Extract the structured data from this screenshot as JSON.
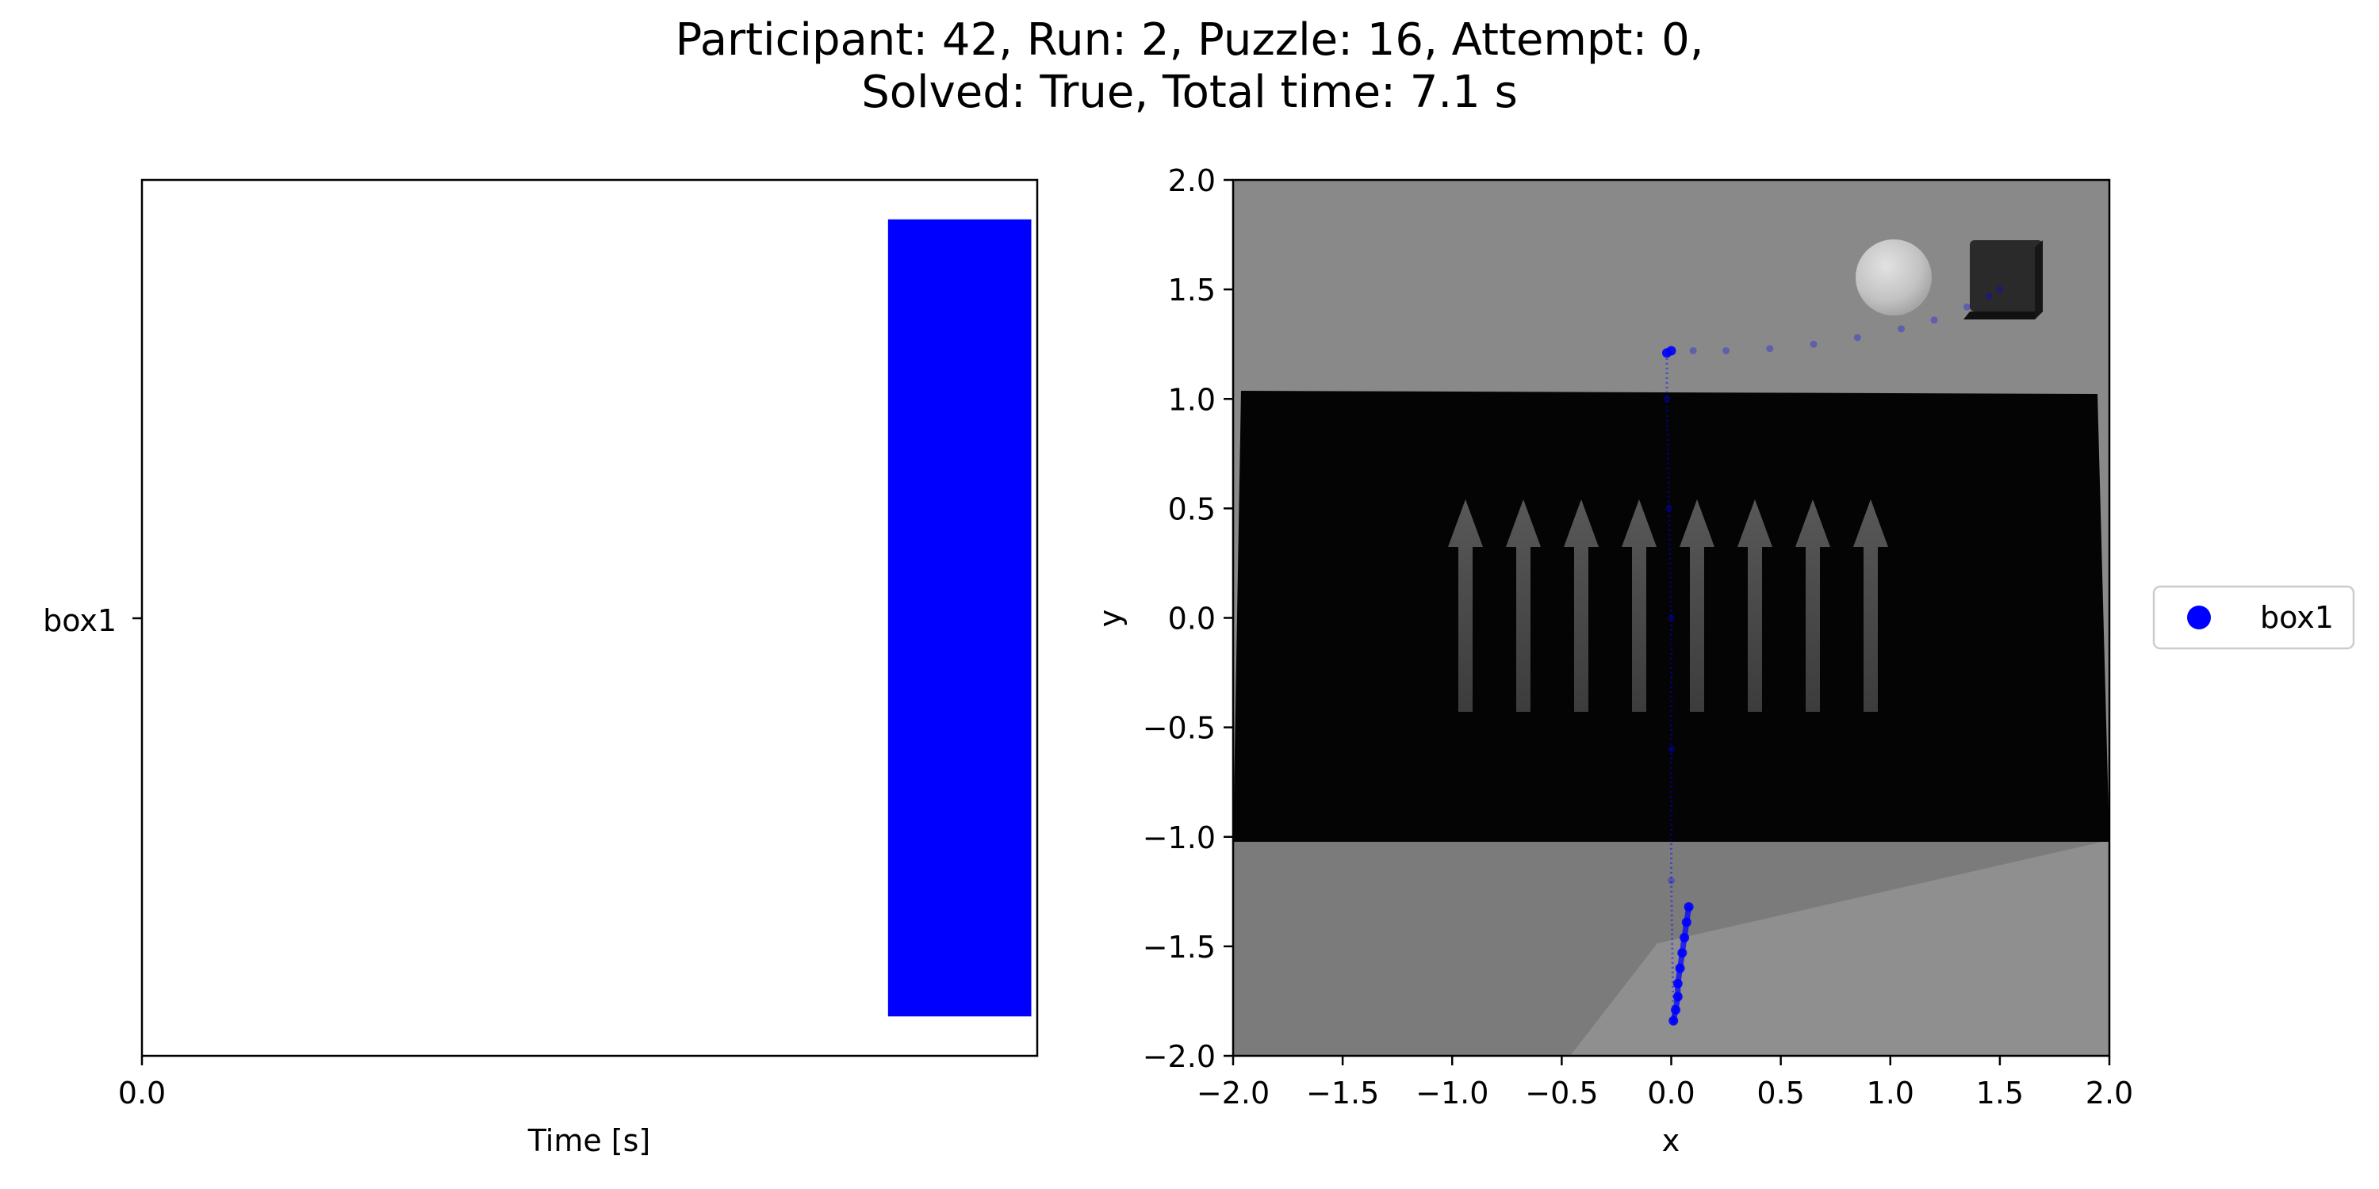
{
  "figure": {
    "title_line1": "Participant: 42, Run: 2, Puzzle: 16, Attempt: 0,",
    "title_line2": "Solved: True, Total time: 7.1 s"
  },
  "chart_data": [
    {
      "type": "bar",
      "orientation": "horizontal",
      "categories": [
        "box1"
      ],
      "series": [
        {
          "name": "box1",
          "start": 6.25,
          "end": 7.45,
          "color": "#0000ff"
        }
      ],
      "xlabel": "Time [s]",
      "ylabel": "",
      "xlim": [
        0,
        7.5
      ],
      "x_ticks": [
        "0.0"
      ],
      "grid": false
    },
    {
      "type": "scatter",
      "xlabel": "x",
      "ylabel": "y",
      "xlim": [
        -2.0,
        2.0
      ],
      "ylim": [
        -2.0,
        2.0
      ],
      "x_ticks": [
        "−2.0",
        "−1.5",
        "−1.0",
        "−0.5",
        "0.0",
        "0.5",
        "1.0",
        "1.5",
        "2.0"
      ],
      "y_ticks": [
        "−2.0",
        "−1.5",
        "−1.0",
        "−0.5",
        "0.0",
        "0.5",
        "1.0",
        "1.5",
        "2.0"
      ],
      "grid": false,
      "legend": {
        "position": "outside right",
        "entries": [
          "box1"
        ]
      },
      "background": "top-down scene image: grey floor, black belt with upward arrows, white sphere and black box near the top right",
      "series": [
        {
          "name": "box1",
          "color": "#0000ff",
          "points": [
            [
              0.08,
              -1.32
            ],
            [
              0.07,
              -1.39
            ],
            [
              0.06,
              -1.46
            ],
            [
              0.05,
              -1.53
            ],
            [
              0.04,
              -1.6
            ],
            [
              0.03,
              -1.67
            ],
            [
              0.03,
              -1.73
            ],
            [
              0.02,
              -1.79
            ],
            [
              0.01,
              -1.84
            ],
            [
              0.0,
              -1.2
            ],
            [
              0.0,
              -0.6
            ],
            [
              0.0,
              0.0
            ],
            [
              -0.01,
              0.5
            ],
            [
              -0.02,
              1.0
            ],
            [
              -0.02,
              1.21
            ],
            [
              0.0,
              1.22
            ],
            [
              0.1,
              1.22
            ],
            [
              0.25,
              1.22
            ],
            [
              0.45,
              1.23
            ],
            [
              0.65,
              1.25
            ],
            [
              0.85,
              1.28
            ],
            [
              1.05,
              1.32
            ],
            [
              1.2,
              1.36
            ],
            [
              1.35,
              1.42
            ],
            [
              1.45,
              1.47
            ],
            [
              1.5,
              1.5
            ]
          ]
        }
      ]
    }
  ]
}
